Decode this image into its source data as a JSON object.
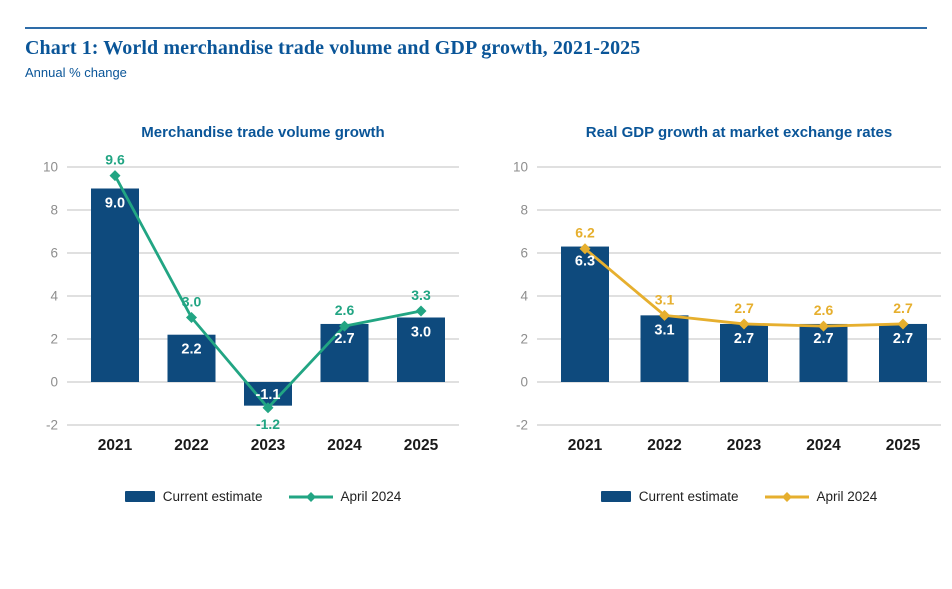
{
  "header": {
    "title": "Chart 1: World merchandise trade volume and GDP growth, 2021-2025",
    "subtitle": "Annual % change"
  },
  "legend": {
    "bar_label": "Current estimate",
    "line_label": "April 2024"
  },
  "colors": {
    "title_blue": "#0a5598",
    "rule_blue": "#2e6ca8",
    "bar_blue": "#0e4a7d",
    "teal": "#22a583",
    "gold": "#e6af2e",
    "grid": "#cecece",
    "axis_label": "#8e8e8e",
    "x_label": "#1a1a1a",
    "bar_label_text": "#ffffff"
  },
  "chart_data": [
    {
      "type": "bar+line",
      "title": "Merchandise trade volume growth",
      "categories": [
        "2021",
        "2022",
        "2023",
        "2024",
        "2025"
      ],
      "series": [
        {
          "name": "Current estimate",
          "kind": "bar",
          "color": "#0e4a7d",
          "values": [
            9.0,
            2.2,
            -1.1,
            2.7,
            3.0
          ]
        },
        {
          "name": "April 2024",
          "kind": "line",
          "color": "#22a583",
          "values": [
            9.6,
            3.0,
            -1.2,
            2.6,
            3.3
          ]
        }
      ],
      "value_labels": {
        "bar": [
          "9.0",
          "2.2",
          "-1.1",
          "2.7",
          "3.0"
        ],
        "line": [
          "9.6",
          "3.0",
          "-1.2",
          "2.6",
          "3.3"
        ]
      },
      "ylim": [
        -2,
        10
      ],
      "yticks": [
        10,
        8,
        6,
        4,
        2,
        0,
        -2
      ],
      "xlabel": "",
      "ylabel": "",
      "grid": true,
      "legend_position": "bottom"
    },
    {
      "type": "bar+line",
      "title": "Real GDP growth at market exchange rates",
      "categories": [
        "2021",
        "2022",
        "2023",
        "2024",
        "2025"
      ],
      "series": [
        {
          "name": "Current estimate",
          "kind": "bar",
          "color": "#0e4a7d",
          "values": [
            6.3,
            3.1,
            2.7,
            2.7,
            2.7
          ]
        },
        {
          "name": "April 2024",
          "kind": "line",
          "color": "#e6af2e",
          "values": [
            6.2,
            3.1,
            2.7,
            2.6,
            2.7
          ]
        }
      ],
      "value_labels": {
        "bar": [
          "6.3",
          "3.1",
          "2.7",
          "2.7",
          "2.7"
        ],
        "line": [
          "6.2",
          "3.1",
          "2.7",
          "2.6",
          "2.7"
        ]
      },
      "ylim": [
        -2,
        10
      ],
      "yticks": [
        10,
        8,
        6,
        4,
        2,
        0,
        -2
      ],
      "xlabel": "",
      "ylabel": "",
      "grid": true,
      "legend_position": "bottom"
    }
  ]
}
